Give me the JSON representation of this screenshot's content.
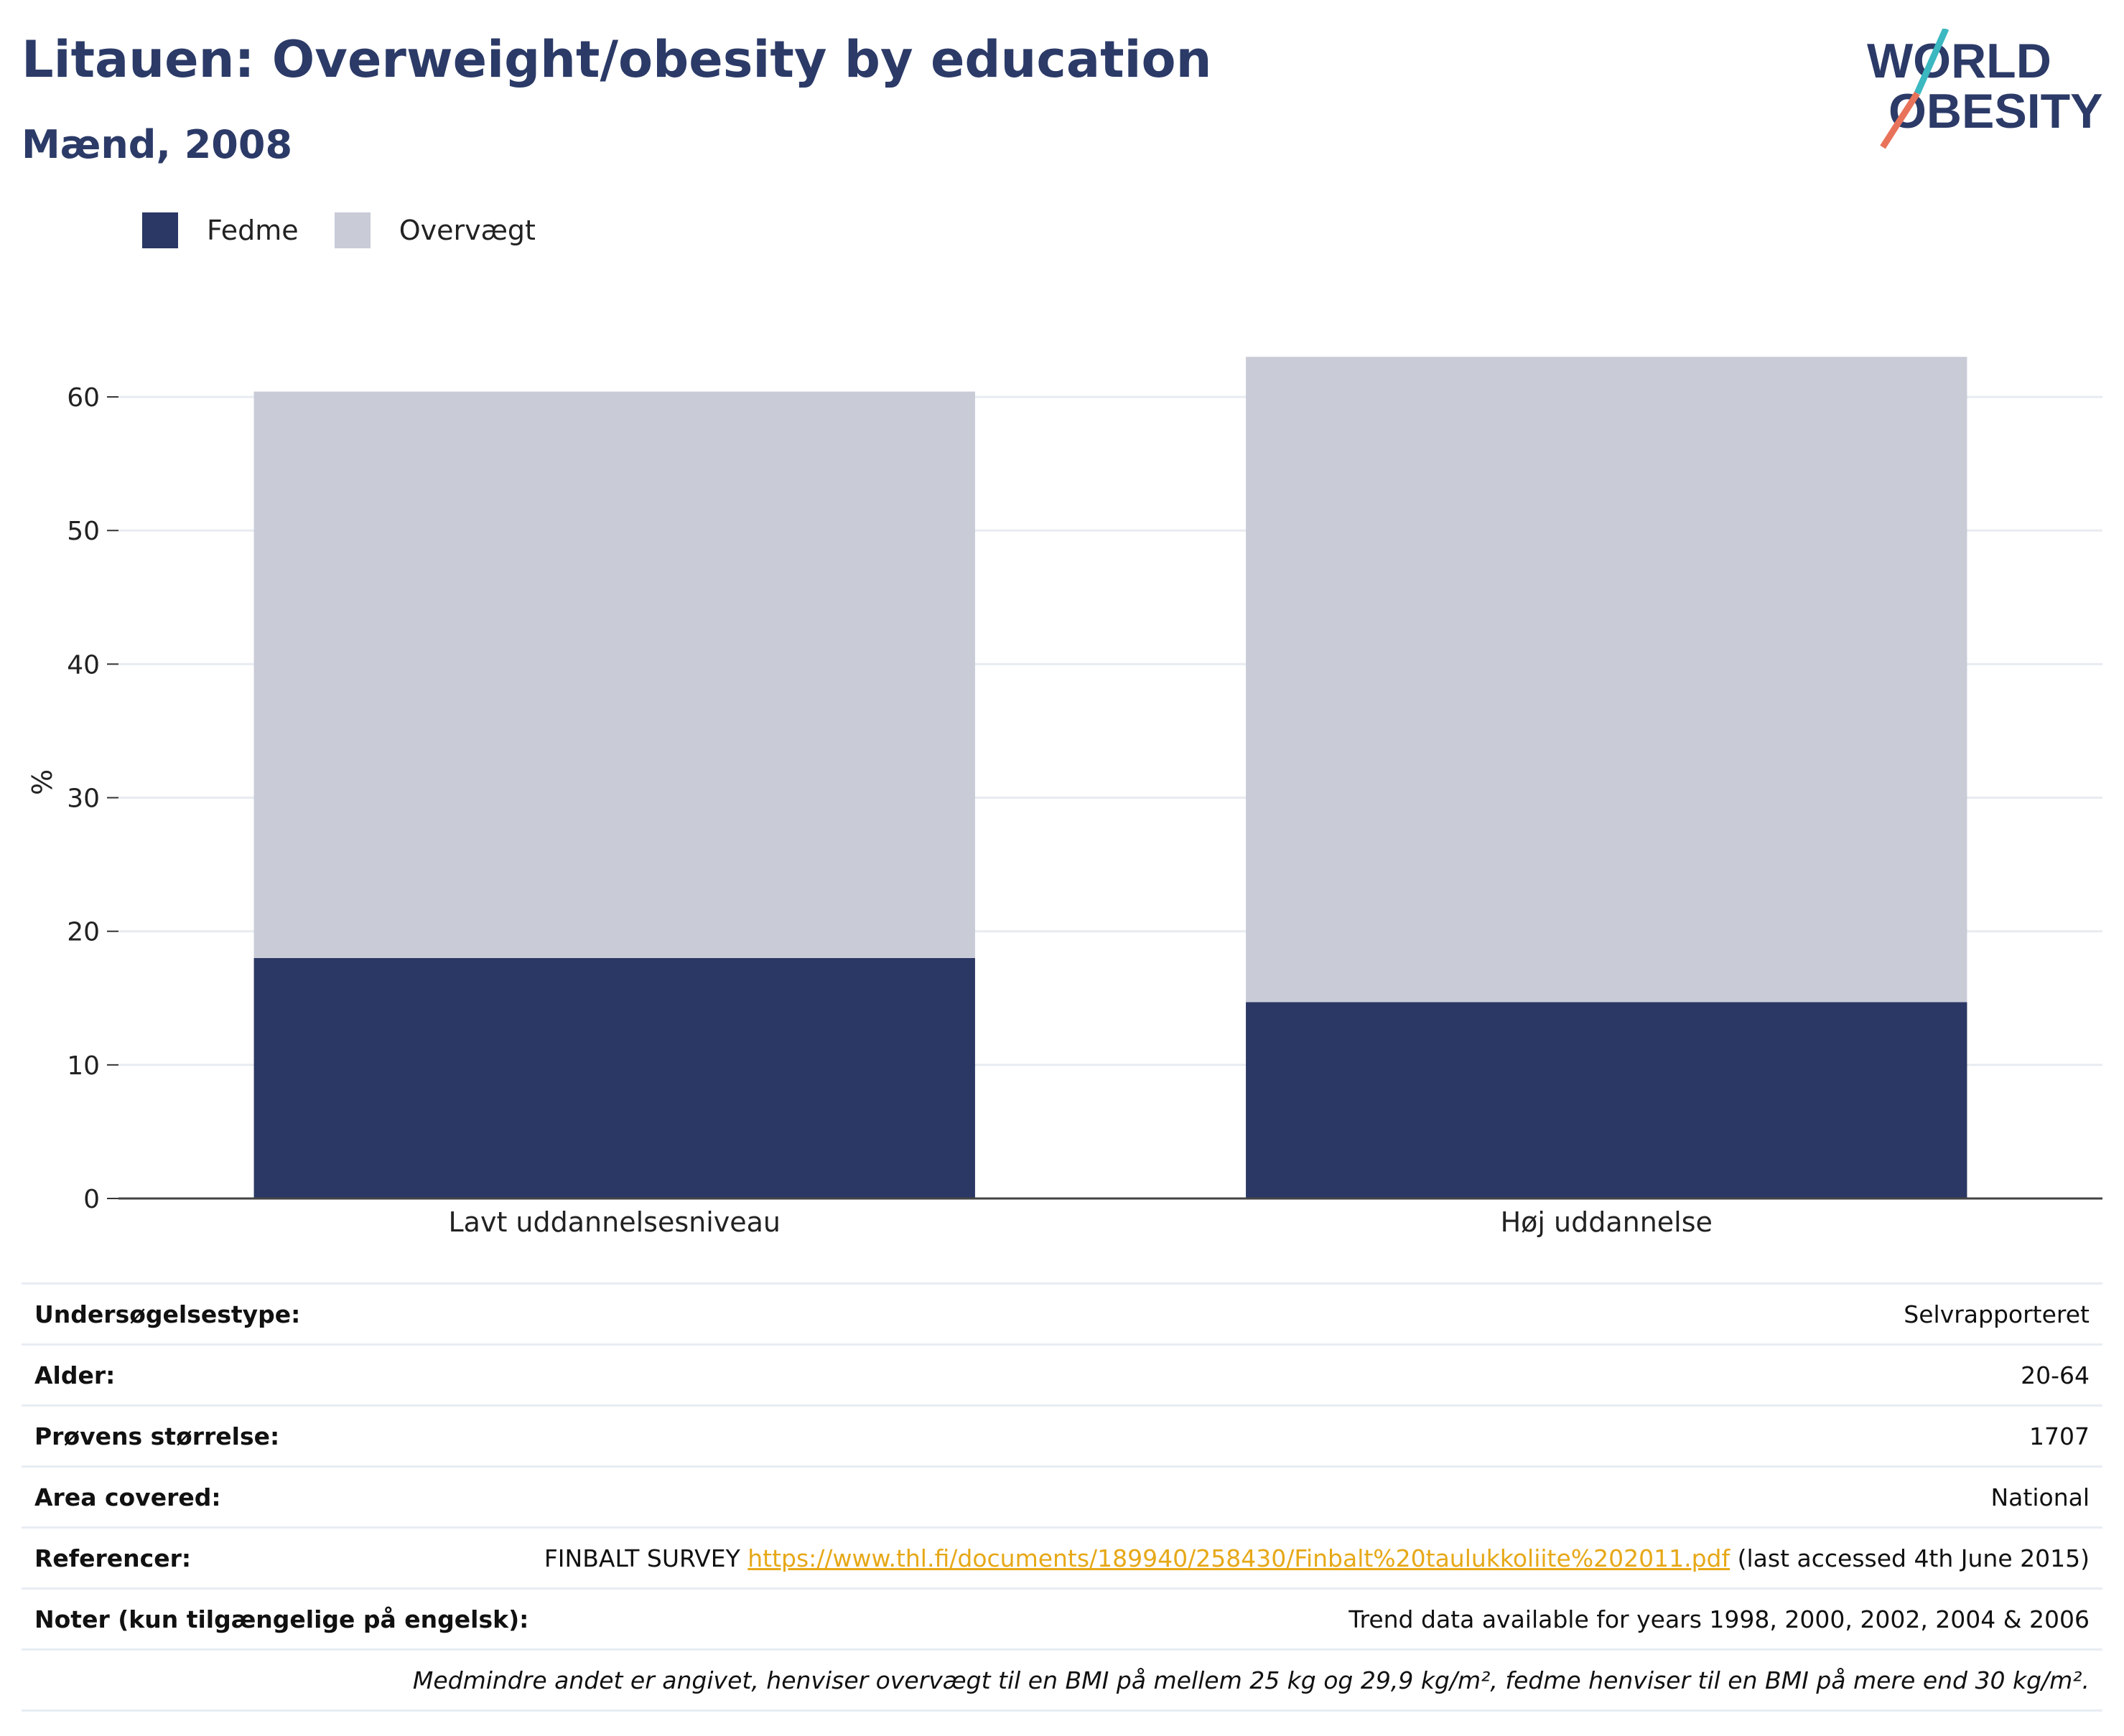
{
  "header": {
    "title": "Litauen: Overweight/obesity by education",
    "subtitle": "Mænd, 2008"
  },
  "logo": {
    "line1": "WORLD",
    "line2": "OBESITY"
  },
  "colors": {
    "fedme": "#2b3764",
    "overvaegt": "#c9cbd7",
    "title": "#2b3a67",
    "link": "#e6a817"
  },
  "chart_data": {
    "type": "bar",
    "stacked": true,
    "categories": [
      "Lavt uddannelsesniveau",
      "Høj uddannelse"
    ],
    "series": [
      {
        "name": "Fedme",
        "values": [
          18.0,
          14.7
        ]
      },
      {
        "name": "Overvægt",
        "values": [
          42.4,
          48.3
        ]
      }
    ],
    "ylabel": "%",
    "ylim": [
      0,
      65
    ],
    "yticks": [
      0,
      10,
      20,
      30,
      40,
      50,
      60
    ],
    "grid": true,
    "legend_position": "top-left"
  },
  "info": [
    {
      "label": "Undersøgelsestype:",
      "value": "Selvrapporteret"
    },
    {
      "label": "Alder:",
      "value": "20-64"
    },
    {
      "label": "Prøvens størrelse:",
      "value": "1707"
    },
    {
      "label": "Area covered:",
      "value": "National"
    }
  ],
  "references": {
    "label": "Referencer:",
    "prefix": "FINBALT SURVEY ",
    "link": "https://www.thl.fi/documents/189940/258430/Finbalt%20taulukkoliite%202011.pdf",
    "suffix": " (last accessed 4th June 2015)"
  },
  "notes": {
    "label": "Noter (kun tilgængelige på engelsk):",
    "value": "Trend data available for years 1998, 2000, 2002, 2004 & 2006",
    "footnote": "Medmindre andet er angivet, henviser overvægt til en BMI på mellem 25 kg og 29,9 kg/m², fedme henviser til en BMI på mere end 30 kg/m²."
  }
}
